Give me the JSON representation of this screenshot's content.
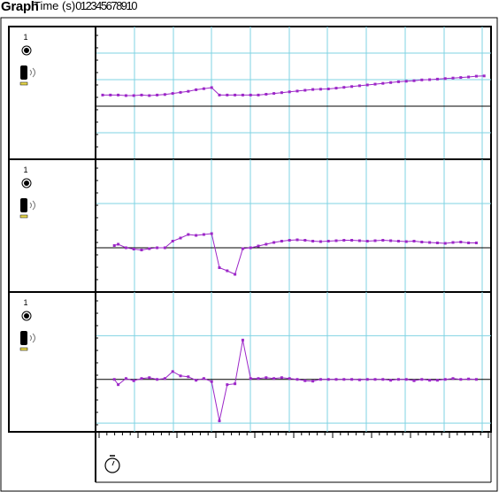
{
  "header": {
    "title": "Graph",
    "x_axis_label": "Time (s)",
    "x_tick_labels": [
      "0",
      "1",
      "2",
      "3",
      "4",
      "5",
      "6",
      "7",
      "8",
      "9",
      "10"
    ]
  },
  "colors": {
    "grid": "#7fd3e3",
    "series": "#9c27c8",
    "frame": "#000000",
    "background": "#ffffff",
    "sensor_badge": "#e8d84a"
  },
  "panels": [
    {
      "channel_label": "1",
      "icons": [
        "record-dot-icon",
        "sensor-probe-icon"
      ]
    },
    {
      "channel_label": "1",
      "icons": [
        "record-dot-icon",
        "sensor-probe-icon"
      ]
    },
    {
      "channel_label": "1",
      "icons": [
        "record-dot-icon",
        "sensor-probe-icon"
      ]
    }
  ],
  "footer": {
    "icon": "stopwatch-icon"
  },
  "chart_data": [
    {
      "type": "line",
      "grid": true,
      "xlim": [
        0,
        10
      ],
      "ylim": [
        -2,
        3
      ],
      "x": [
        0,
        0.2,
        0.4,
        0.6,
        0.8,
        1,
        1.2,
        1.4,
        1.6,
        1.8,
        2,
        2.2,
        2.4,
        2.6,
        2.8,
        3,
        3.2,
        3.4,
        3.6,
        3.8,
        4,
        4.2,
        4.4,
        4.6,
        4.8,
        5,
        5.2,
        5.4,
        5.6,
        5.8,
        6,
        6.2,
        6.4,
        6.6,
        6.8,
        7,
        7.2,
        7.4,
        7.6,
        7.8,
        8,
        8.2,
        8.4,
        8.6,
        8.8,
        9,
        9.2,
        9.4,
        9.6,
        9.8
      ],
      "y": [
        0.42,
        0.42,
        0.42,
        0.4,
        0.4,
        0.42,
        0.4,
        0.42,
        0.44,
        0.48,
        0.52,
        0.56,
        0.62,
        0.66,
        0.7,
        0.42,
        0.42,
        0.42,
        0.42,
        0.42,
        0.42,
        0.45,
        0.48,
        0.51,
        0.54,
        0.57,
        0.6,
        0.63,
        0.64,
        0.65,
        0.68,
        0.71,
        0.74,
        0.77,
        0.8,
        0.83,
        0.86,
        0.89,
        0.92,
        0.94,
        0.96,
        0.99,
        1.0,
        1.02,
        1.04,
        1.06,
        1.08,
        1.1,
        1.13,
        1.14
      ]
    },
    {
      "type": "line",
      "grid": true,
      "xlim": [
        0,
        10
      ],
      "ylim": [
        -1,
        2
      ],
      "x": [
        0.3,
        0.4,
        0.6,
        0.8,
        1,
        1.2,
        1.4,
        1.6,
        1.8,
        2,
        2.2,
        2.4,
        2.6,
        2.8,
        3,
        3.2,
        3.4,
        3.6,
        3.8,
        4,
        4.2,
        4.4,
        4.6,
        4.8,
        5,
        5.2,
        5.4,
        5.6,
        5.8,
        6,
        6.2,
        6.4,
        6.6,
        6.8,
        7,
        7.2,
        7.4,
        7.6,
        7.8,
        8,
        8.2,
        8.4,
        8.6,
        8.8,
        9,
        9.2,
        9.4,
        9.6
      ],
      "y": [
        0.05,
        0.08,
        0,
        -0.03,
        -0.05,
        -0.02,
        0,
        0,
        0.15,
        0.22,
        0.3,
        0.28,
        0.3,
        0.32,
        -0.45,
        -0.52,
        -0.6,
        -0.02,
        0,
        0.04,
        0.08,
        0.12,
        0.15,
        0.17,
        0.18,
        0.17,
        0.15,
        0.14,
        0.15,
        0.16,
        0.17,
        0.17,
        0.16,
        0.15,
        0.16,
        0.17,
        0.16,
        0.15,
        0.14,
        0.15,
        0.13,
        0.12,
        0.11,
        0.1,
        0.12,
        0.13,
        0.11,
        0.11
      ]
    },
    {
      "type": "line",
      "grid": true,
      "xlim": [
        0,
        10
      ],
      "ylim": [
        -1.2,
        2
      ],
      "x": [
        0.3,
        0.4,
        0.6,
        0.8,
        1,
        1.2,
        1.4,
        1.6,
        1.8,
        2,
        2.2,
        2.4,
        2.6,
        2.8,
        3,
        3.2,
        3.4,
        3.6,
        3.8,
        4,
        4.2,
        4.4,
        4.6,
        4.8,
        5,
        5.2,
        5.4,
        5.6,
        5.8,
        6,
        6.2,
        6.4,
        6.6,
        6.8,
        7,
        7.2,
        7.4,
        7.6,
        7.8,
        8,
        8.2,
        8.4,
        8.6,
        8.8,
        9,
        9.2,
        9.4,
        9.6
      ],
      "y": [
        0,
        -0.12,
        0.02,
        -0.03,
        0.02,
        0.04,
        0,
        0.02,
        0.18,
        0.08,
        0.06,
        -0.02,
        0.02,
        -0.05,
        -0.95,
        -0.12,
        -0.1,
        0.9,
        0.02,
        0.02,
        0.04,
        0.02,
        0.04,
        0.02,
        0,
        -0.03,
        -0.04,
        0,
        0,
        0,
        0,
        0,
        -0.01,
        0,
        0,
        0,
        -0.02,
        0,
        0,
        -0.03,
        0,
        -0.02,
        -0.02,
        0,
        0.02,
        0,
        0.01,
        0
      ]
    }
  ]
}
